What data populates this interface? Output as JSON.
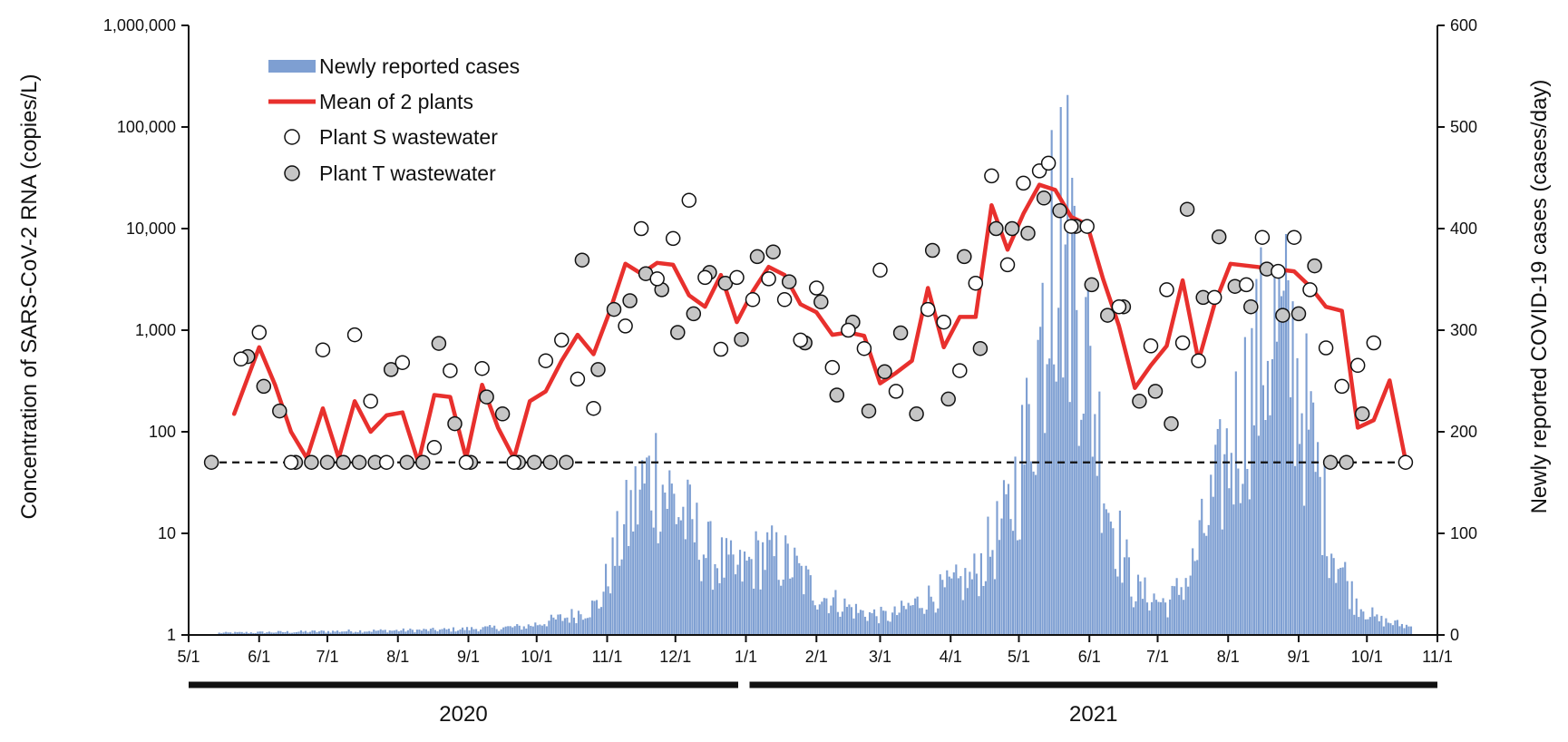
{
  "chart_data": {
    "type": "bar+line+scatter",
    "x_axis": {
      "date_range": [
        "2020-05-01",
        "2021-11-01"
      ],
      "tick_labels": [
        "5/1",
        "6/1",
        "7/1",
        "8/1",
        "9/1",
        "10/1",
        "11/1",
        "12/1",
        "1/1",
        "2/1",
        "3/1",
        "4/1",
        "5/1",
        "6/1",
        "7/1",
        "8/1",
        "9/1",
        "10/1",
        "11/1"
      ],
      "year_bars": [
        {
          "label": "2020",
          "from": "2020-05-01",
          "to": "2020-12-31"
        },
        {
          "label": "2021",
          "from": "2021-01-01",
          "to": "2021-11-01"
        }
      ]
    },
    "y_left": {
      "label": "Concentration of SARS-CoV-2 RNA (copies/L)",
      "scale": "log",
      "range": [
        1,
        1000000
      ],
      "tick_labels": [
        "1",
        "10",
        "100",
        "1,000",
        "10,000",
        "100,000",
        "1,000,000"
      ]
    },
    "y_right": {
      "label": "Newly reported COVID-19 cases (cases/day)",
      "scale": "linear",
      "range": [
        0,
        600
      ],
      "tick_labels": [
        "0",
        "100",
        "200",
        "300",
        "400",
        "500",
        "600"
      ]
    },
    "detection_limit": 50,
    "legend": [
      {
        "label": "Newly reported cases",
        "kind": "bar",
        "color": "#7e9fd2"
      },
      {
        "label": "Mean of 2 plants",
        "kind": "line",
        "color": "#e8302d"
      },
      {
        "label": "Plant S wastewater",
        "kind": "open-circle",
        "color": "#ffffff"
      },
      {
        "label": "Plant T wastewater",
        "kind": "filled-circle",
        "color": "#c6c6c6"
      }
    ],
    "cases_keypoints": [
      [
        "2020-05-14",
        2
      ],
      [
        "2020-07-15",
        4
      ],
      [
        "2020-08-20",
        5
      ],
      [
        "2020-09-25",
        8
      ],
      [
        "2020-10-15",
        18
      ],
      [
        "2020-10-28",
        30
      ],
      [
        "2020-11-05",
        85
      ],
      [
        "2020-11-15",
        140
      ],
      [
        "2020-11-22",
        160
      ],
      [
        "2020-11-30",
        130
      ],
      [
        "2020-12-15",
        80
      ],
      [
        "2020-12-28",
        60
      ],
      [
        "2021-01-08",
        80
      ],
      [
        "2021-01-20",
        70
      ],
      [
        "2021-02-01",
        40
      ],
      [
        "2021-02-20",
        22
      ],
      [
        "2021-03-05",
        18
      ],
      [
        "2021-03-20",
        35
      ],
      [
        "2021-04-10",
        55
      ],
      [
        "2021-04-25",
        110
      ],
      [
        "2021-05-05",
        200
      ],
      [
        "2021-05-12",
        320
      ],
      [
        "2021-05-18",
        400
      ],
      [
        "2021-05-24",
        380
      ],
      [
        "2021-06-01",
        250
      ],
      [
        "2021-06-10",
        120
      ],
      [
        "2021-06-20",
        45
      ],
      [
        "2021-07-05",
        30
      ],
      [
        "2021-07-15",
        60
      ],
      [
        "2021-07-28",
        150
      ],
      [
        "2021-08-10",
        240
      ],
      [
        "2021-08-20",
        300
      ],
      [
        "2021-08-28",
        280
      ],
      [
        "2021-09-05",
        200
      ],
      [
        "2021-09-15",
        90
      ],
      [
        "2021-09-25",
        35
      ],
      [
        "2021-10-05",
        15
      ],
      [
        "2021-10-20",
        8
      ]
    ],
    "cases_peak": {
      "date": "2021-05-15",
      "value": 497
    },
    "mean_of_2_plants": [
      [
        "2020-05-21",
        150
      ],
      [
        "2020-06-01",
        680
      ],
      [
        "2020-06-08",
        290
      ],
      [
        "2020-06-15",
        100
      ],
      [
        "2020-06-22",
        55
      ],
      [
        "2020-06-29",
        170
      ],
      [
        "2020-07-06",
        55
      ],
      [
        "2020-07-13",
        200
      ],
      [
        "2020-07-20",
        100
      ],
      [
        "2020-07-27",
        145
      ],
      [
        "2020-08-03",
        155
      ],
      [
        "2020-08-10",
        50
      ],
      [
        "2020-08-17",
        230
      ],
      [
        "2020-08-24",
        220
      ],
      [
        "2020-08-31",
        55
      ],
      [
        "2020-09-07",
        290
      ],
      [
        "2020-09-14",
        110
      ],
      [
        "2020-09-21",
        55
      ],
      [
        "2020-09-28",
        200
      ],
      [
        "2020-10-05",
        250
      ],
      [
        "2020-10-12",
        500
      ],
      [
        "2020-10-19",
        900
      ],
      [
        "2020-10-26",
        580
      ],
      [
        "2020-11-02",
        1500
      ],
      [
        "2020-11-09",
        4500
      ],
      [
        "2020-11-16",
        3600
      ],
      [
        "2020-11-23",
        4600
      ],
      [
        "2020-11-30",
        4400
      ],
      [
        "2020-12-07",
        2200
      ],
      [
        "2020-12-14",
        1700
      ],
      [
        "2020-12-21",
        3500
      ],
      [
        "2020-12-28",
        1200
      ],
      [
        "2021-01-04",
        2400
      ],
      [
        "2021-01-11",
        4200
      ],
      [
        "2021-01-18",
        3500
      ],
      [
        "2021-01-25",
        1800
      ],
      [
        "2021-02-01",
        1500
      ],
      [
        "2021-02-08",
        900
      ],
      [
        "2021-02-15",
        950
      ],
      [
        "2021-02-22",
        880
      ],
      [
        "2021-03-01",
        300
      ],
      [
        "2021-03-08",
        380
      ],
      [
        "2021-03-15",
        500
      ],
      [
        "2021-03-22",
        2600
      ],
      [
        "2021-03-29",
        680
      ],
      [
        "2021-04-05",
        1350
      ],
      [
        "2021-04-12",
        1350
      ],
      [
        "2021-04-19",
        17000
      ],
      [
        "2021-04-26",
        6200
      ],
      [
        "2021-05-03",
        14000
      ],
      [
        "2021-05-10",
        27000
      ],
      [
        "2021-05-17",
        24000
      ],
      [
        "2021-05-24",
        13000
      ],
      [
        "2021-05-31",
        11000
      ],
      [
        "2021-06-07",
        3200
      ],
      [
        "2021-06-14",
        1100
      ],
      [
        "2021-06-21",
        270
      ],
      [
        "2021-06-28",
        450
      ],
      [
        "2021-07-05",
        700
      ],
      [
        "2021-07-12",
        3100
      ],
      [
        "2021-07-19",
        500
      ],
      [
        "2021-07-26",
        1800
      ],
      [
        "2021-08-02",
        4500
      ],
      [
        "2021-08-30",
        3800
      ],
      [
        "2021-09-06",
        2700
      ],
      [
        "2021-09-13",
        1700
      ],
      [
        "2021-09-20",
        1550
      ],
      [
        "2021-09-27",
        110
      ],
      [
        "2021-10-04",
        130
      ],
      [
        "2021-10-11",
        320
      ],
      [
        "2021-10-18",
        52
      ]
    ],
    "plant_s": [
      [
        "2020-05-24",
        520
      ],
      [
        "2020-06-01",
        950
      ],
      [
        "2020-06-15",
        50
      ],
      [
        "2020-06-29",
        640
      ],
      [
        "2020-07-13",
        900
      ],
      [
        "2020-07-20",
        200
      ],
      [
        "2020-07-27",
        50
      ],
      [
        "2020-08-03",
        480
      ],
      [
        "2020-08-17",
        70
      ],
      [
        "2020-08-24",
        400
      ],
      [
        "2020-08-31",
        50
      ],
      [
        "2020-09-07",
        420
      ],
      [
        "2020-09-21",
        50
      ],
      [
        "2020-10-05",
        500
      ],
      [
        "2020-10-12",
        800
      ],
      [
        "2020-10-19",
        330
      ],
      [
        "2020-10-26",
        170
      ],
      [
        "2020-11-09",
        1100
      ],
      [
        "2020-11-16",
        10000
      ],
      [
        "2020-11-23",
        3200
      ],
      [
        "2020-11-30",
        8000
      ],
      [
        "2020-12-07",
        19000
      ],
      [
        "2020-12-14",
        3300
      ],
      [
        "2020-12-21",
        650
      ],
      [
        "2020-12-28",
        3300
      ],
      [
        "2021-01-04",
        2000
      ],
      [
        "2021-01-11",
        3200
      ],
      [
        "2021-01-18",
        2000
      ],
      [
        "2021-01-25",
        800
      ],
      [
        "2021-02-01",
        2600
      ],
      [
        "2021-02-08",
        430
      ],
      [
        "2021-02-15",
        1000
      ],
      [
        "2021-02-22",
        660
      ],
      [
        "2021-03-01",
        3900
      ],
      [
        "2021-03-08",
        250
      ],
      [
        "2021-03-22",
        1600
      ],
      [
        "2021-03-29",
        1200
      ],
      [
        "2021-04-05",
        400
      ],
      [
        "2021-04-12",
        2900
      ],
      [
        "2021-04-19",
        33000
      ],
      [
        "2021-04-26",
        4400
      ],
      [
        "2021-05-03",
        28000
      ],
      [
        "2021-05-10",
        37000
      ],
      [
        "2021-05-14",
        44000
      ],
      [
        "2021-05-24",
        10500
      ],
      [
        "2021-05-31",
        10500
      ],
      [
        "2021-06-14",
        1700
      ],
      [
        "2021-06-28",
        700
      ],
      [
        "2021-07-05",
        2500
      ],
      [
        "2021-07-12",
        750
      ],
      [
        "2021-07-19",
        500
      ],
      [
        "2021-07-26",
        2100
      ],
      [
        "2021-08-09",
        2800
      ],
      [
        "2021-08-16",
        8200
      ],
      [
        "2021-08-23",
        3800
      ],
      [
        "2021-08-30",
        8200
      ],
      [
        "2021-09-06",
        2500
      ],
      [
        "2021-09-13",
        670
      ],
      [
        "2021-09-20",
        280
      ],
      [
        "2021-09-27",
        450
      ],
      [
        "2021-10-04",
        750
      ],
      [
        "2021-10-18",
        50
      ]
    ],
    "plant_t": [
      [
        "2020-05-11",
        50
      ],
      [
        "2020-05-27",
        550
      ],
      [
        "2020-06-03",
        280
      ],
      [
        "2020-06-10",
        160
      ],
      [
        "2020-06-17",
        50
      ],
      [
        "2020-06-24",
        50
      ],
      [
        "2020-07-01",
        50
      ],
      [
        "2020-07-08",
        50
      ],
      [
        "2020-07-15",
        50
      ],
      [
        "2020-07-22",
        50
      ],
      [
        "2020-07-29",
        410
      ],
      [
        "2020-08-05",
        50
      ],
      [
        "2020-08-12",
        50
      ],
      [
        "2020-08-19",
        740
      ],
      [
        "2020-08-26",
        120
      ],
      [
        "2020-09-02",
        50
      ],
      [
        "2020-09-09",
        220
      ],
      [
        "2020-09-16",
        150
      ],
      [
        "2020-09-23",
        50
      ],
      [
        "2020-09-30",
        50
      ],
      [
        "2020-10-07",
        50
      ],
      [
        "2020-10-14",
        50
      ],
      [
        "2020-10-21",
        4900
      ],
      [
        "2020-10-28",
        410
      ],
      [
        "2020-11-04",
        1600
      ],
      [
        "2020-11-11",
        1950
      ],
      [
        "2020-11-18",
        3600
      ],
      [
        "2020-11-25",
        2500
      ],
      [
        "2020-12-02",
        950
      ],
      [
        "2020-12-09",
        1450
      ],
      [
        "2020-12-16",
        3700
      ],
      [
        "2020-12-23",
        2900
      ],
      [
        "2020-12-30",
        810
      ],
      [
        "2021-01-06",
        5300
      ],
      [
        "2021-01-13",
        5900
      ],
      [
        "2021-01-20",
        3000
      ],
      [
        "2021-01-27",
        750
      ],
      [
        "2021-02-03",
        1900
      ],
      [
        "2021-02-10",
        230
      ],
      [
        "2021-02-17",
        1200
      ],
      [
        "2021-02-24",
        160
      ],
      [
        "2021-03-03",
        390
      ],
      [
        "2021-03-10",
        940
      ],
      [
        "2021-03-17",
        150
      ],
      [
        "2021-03-24",
        6100
      ],
      [
        "2021-03-31",
        210
      ],
      [
        "2021-04-07",
        5300
      ],
      [
        "2021-04-14",
        660
      ],
      [
        "2021-04-21",
        10000
      ],
      [
        "2021-04-28",
        10000
      ],
      [
        "2021-05-05",
        9000
      ],
      [
        "2021-05-12",
        20000
      ],
      [
        "2021-05-19",
        15000
      ],
      [
        "2021-05-26",
        10500
      ],
      [
        "2021-06-02",
        2800
      ],
      [
        "2021-06-09",
        1400
      ],
      [
        "2021-06-16",
        1700
      ],
      [
        "2021-06-23",
        200
      ],
      [
        "2021-06-30",
        250
      ],
      [
        "2021-07-07",
        120
      ],
      [
        "2021-07-14",
        15500
      ],
      [
        "2021-07-21",
        2100
      ],
      [
        "2021-07-28",
        8300
      ],
      [
        "2021-08-04",
        2700
      ],
      [
        "2021-08-11",
        1700
      ],
      [
        "2021-08-18",
        4000
      ],
      [
        "2021-08-25",
        1400
      ],
      [
        "2021-09-01",
        1450
      ],
      [
        "2021-09-08",
        4300
      ],
      [
        "2021-09-15",
        50
      ],
      [
        "2021-09-22",
        50
      ],
      [
        "2021-09-29",
        150
      ]
    ]
  }
}
